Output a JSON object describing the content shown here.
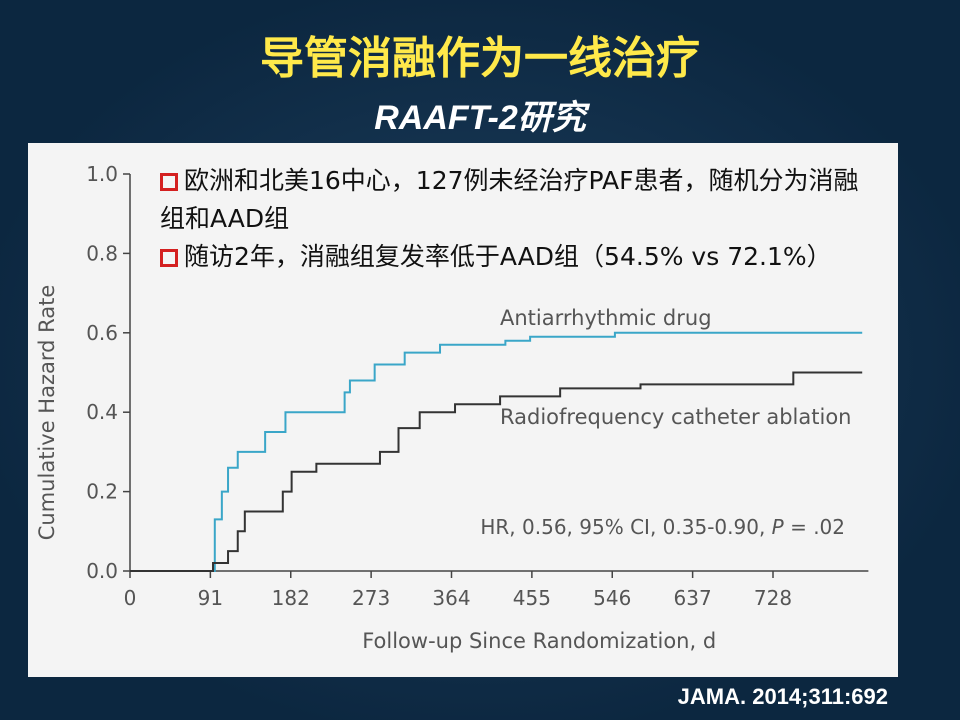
{
  "slide": {
    "title": "导管消融作为一线治疗",
    "subtitle": "RAAFT-2研究",
    "bullets": [
      "欧洲和北美16中心，127例未经治疗PAF患者，随机分为消融组和AAD组",
      "随访2年，消融组复发率低于AAD组（54.5% vs 72.1%）"
    ],
    "citation": "JAMA. 2014;311:692"
  },
  "chart_data": {
    "type": "line",
    "step": true,
    "x_label": "Follow-up Since Randomization, d",
    "y_label": "Cumulative Hazard Rate",
    "annotation": [
      "HR, 0.56, 95% CI, 0.35-0.90, ",
      "P",
      " = .02"
    ],
    "xlim": [
      0,
      836
    ],
    "xticks": [
      0,
      91,
      182,
      273,
      364,
      455,
      546,
      637,
      728
    ],
    "ylim": [
      0,
      1.0
    ],
    "yticks": [
      {
        "value": 0,
        "label": "0.0"
      },
      {
        "value": 0.2,
        "label": "0.2"
      },
      {
        "value": 0.4,
        "label": "0.4"
      },
      {
        "value": 0.6,
        "label": "0.6"
      },
      {
        "value": 0.8,
        "label": "0.8"
      },
      {
        "value": 1.0,
        "label": "1.0"
      }
    ],
    "series": [
      {
        "name": "Antiarrhythmic drug",
        "color": "#3aa6c8",
        "x": [
          0,
          96,
          104,
          111,
          122,
          153,
          176,
          196,
          243,
          249,
          277,
          311,
          351,
          425,
          453,
          549,
          694,
          829
        ],
        "values": [
          0,
          0.13,
          0.2,
          0.26,
          0.3,
          0.35,
          0.4,
          0.4,
          0.45,
          0.48,
          0.52,
          0.55,
          0.57,
          0.58,
          0.59,
          0.6,
          0.6,
          0.6
        ]
      },
      {
        "name": "Radiofrequency catheter ablation",
        "color": "#333333",
        "x": [
          0,
          94,
          111,
          122,
          130,
          173,
          183,
          211,
          283,
          304,
          328,
          368,
          419,
          487,
          578,
          751,
          829
        ],
        "values": [
          0,
          0.02,
          0.05,
          0.1,
          0.15,
          0.2,
          0.25,
          0.27,
          0.3,
          0.36,
          0.4,
          0.42,
          0.44,
          0.46,
          0.47,
          0.5,
          0.5
        ]
      }
    ]
  }
}
